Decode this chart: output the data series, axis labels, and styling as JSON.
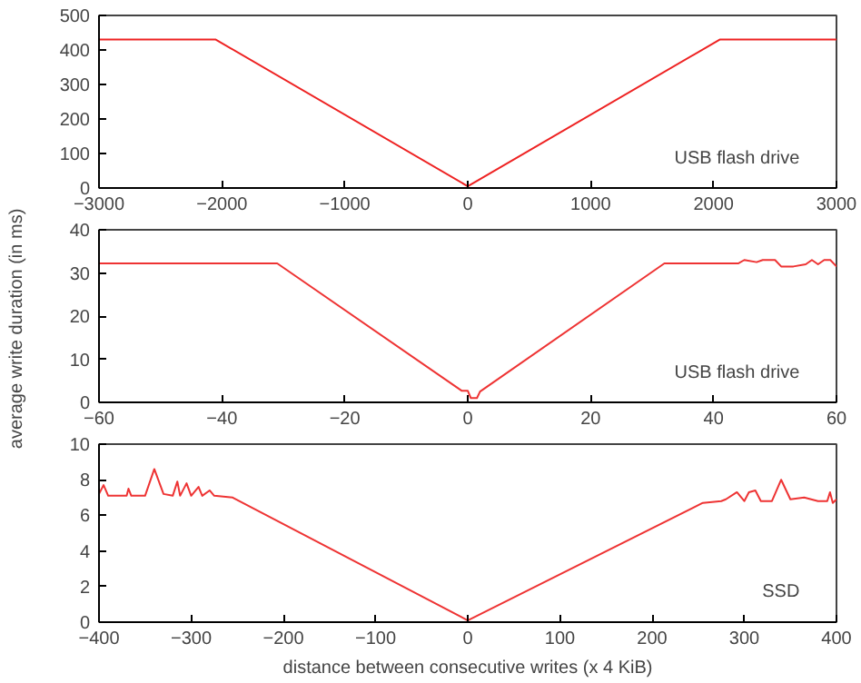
{
  "chart_data": [
    {
      "type": "line",
      "annotations": [
        "USB flash drive"
      ],
      "xlim": [
        -3000,
        3000
      ],
      "ylim": [
        0,
        500
      ],
      "xticks": [
        -3000,
        -2000,
        -1000,
        0,
        1000,
        2000,
        3000
      ],
      "yticks": [
        0,
        100,
        200,
        300,
        400,
        500
      ],
      "grid": false,
      "x": [
        -3000,
        -2050,
        0,
        2050,
        3000
      ],
      "series": [
        {
          "color": "#ee2222",
          "values": [
            430,
            430,
            5,
            430,
            430
          ]
        }
      ]
    },
    {
      "type": "line",
      "ylabel": "average write duration (in ms)",
      "annotations": [
        "USB flash drive"
      ],
      "xlim": [
        -60,
        60
      ],
      "ylim": [
        0,
        40
      ],
      "xticks": [
        -60,
        -40,
        -20,
        0,
        20,
        40,
        60
      ],
      "yticks": [
        0,
        10,
        20,
        30,
        40
      ],
      "grid": false,
      "x": [
        -60,
        -31,
        -1,
        0,
        0.5,
        1.5,
        2,
        32,
        44,
        45,
        47,
        48,
        50,
        51,
        53,
        55,
        56,
        57,
        58,
        59,
        60
      ],
      "series": [
        {
          "color": "#ee3333",
          "values": [
            32.2,
            32.2,
            2.7,
            2.7,
            1,
            1,
            2.5,
            32.2,
            32.2,
            33,
            32.5,
            33,
            33,
            31.5,
            31.5,
            32,
            33,
            32,
            33,
            33,
            31.5
          ]
        }
      ]
    },
    {
      "type": "line",
      "xlabel": "distance between consecutive writes (x 4 KiB)",
      "annotations": [
        "SSD"
      ],
      "xlim": [
        -400,
        400
      ],
      "ylim": [
        0,
        10
      ],
      "xticks": [
        -400,
        -300,
        -200,
        -100,
        0,
        100,
        200,
        300,
        400
      ],
      "yticks": [
        0,
        2,
        4,
        6,
        8,
        10
      ],
      "grid": false,
      "x": [
        -400,
        -395,
        -390,
        -370,
        -368,
        -365,
        -350,
        -340,
        -330,
        -320,
        -315,
        -312,
        -305,
        -300,
        -292,
        -288,
        -280,
        -275,
        -255,
        0,
        255,
        275,
        280,
        292,
        300,
        305,
        312,
        318,
        330,
        340,
        350,
        365,
        380,
        390,
        393,
        396,
        400
      ],
      "series": [
        {
          "color": "#ee3333",
          "values": [
            7.2,
            7.7,
            7.1,
            7.1,
            7.5,
            7.1,
            7.1,
            8.6,
            7.2,
            7.1,
            7.9,
            7.1,
            7.8,
            7.1,
            7.6,
            7.1,
            7.4,
            7.1,
            7.0,
            0.1,
            6.7,
            6.8,
            6.9,
            7.3,
            6.8,
            7.3,
            7.4,
            6.8,
            6.8,
            8.0,
            6.9,
            7.0,
            6.8,
            6.8,
            7.3,
            6.7,
            6.9
          ]
        }
      ]
    }
  ]
}
